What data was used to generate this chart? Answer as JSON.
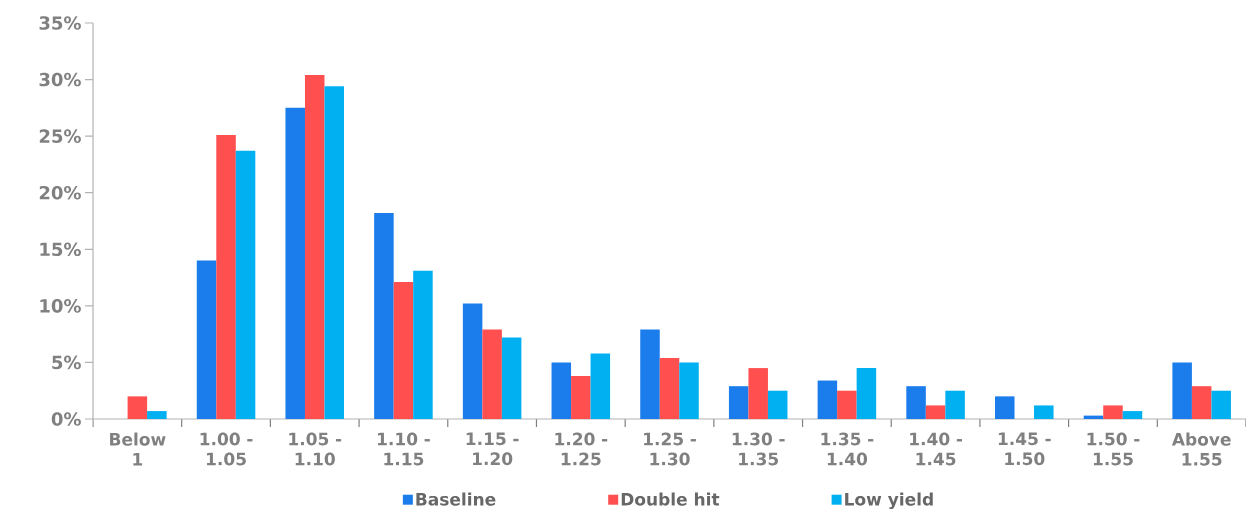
{
  "chart_data": {
    "type": "bar",
    "categories": [
      "Below 1",
      "1.00 - 1.05",
      "1.05 - 1.10",
      "1.10 - 1.15",
      "1.15 - 1.20",
      "1.20 - 1.25",
      "1.25 - 1.30",
      "1.30 - 1.35",
      "1.35 - 1.40",
      "1.40 - 1.45",
      "1.45 - 1.50",
      "1.50 - 1.55",
      "Above 1.55"
    ],
    "series": [
      {
        "name": "Baseline",
        "color": "#1b7cec",
        "values": [
          0,
          14,
          27.5,
          18.2,
          10.2,
          5.0,
          7.9,
          2.9,
          3.4,
          2.9,
          2.0,
          0.3,
          5.0
        ]
      },
      {
        "name": "Double hit",
        "color": "#ff4f4f",
        "values": [
          2.0,
          25.1,
          30.4,
          12.1,
          7.9,
          3.8,
          5.4,
          4.5,
          2.5,
          1.2,
          0,
          1.2,
          2.9
        ]
      },
      {
        "name": "Low yield",
        "color": "#00b0f0",
        "values": [
          0.7,
          23.7,
          29.4,
          13.1,
          7.2,
          5.8,
          5.0,
          2.5,
          4.5,
          2.5,
          1.2,
          0.7,
          2.5
        ]
      }
    ],
    "ylim": [
      0,
      35
    ],
    "yticks": [
      {
        "value": 0,
        "label": "0%"
      },
      {
        "value": 5,
        "label": "5%"
      },
      {
        "value": 10,
        "label": "10%"
      },
      {
        "value": 15,
        "label": "15%"
      },
      {
        "value": 20,
        "label": "20%"
      },
      {
        "value": 25,
        "label": "25%"
      },
      {
        "value": 30,
        "label": "30%"
      },
      {
        "value": 35,
        "label": "35%"
      }
    ],
    "grid": false,
    "legend": "bottom"
  }
}
